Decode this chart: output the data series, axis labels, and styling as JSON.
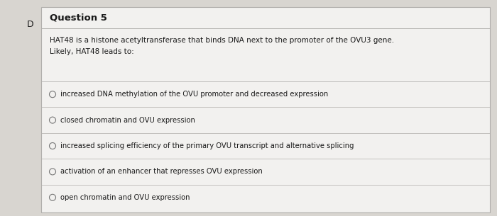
{
  "bg_color": "#d8d5d0",
  "card_color": "#f2f1ef",
  "border_color": "#b0aeab",
  "title": "Question 5",
  "title_fontsize": 9.5,
  "prefix_letter": "D",
  "question_line1": "HAT48 is a histone acetyltransferase that binds DNA next to the promoter of the OVU3 gene.",
  "question_line2": "Likely, HAT48 leads to:",
  "question_fontsize": 7.5,
  "options": [
    "increased DNA methylation of the OVU promoter and decreased expression",
    "closed chromatin and OVU expression",
    "increased splicing efficiency of the primary OVU transcript and alternative splicing",
    "activation of an enhancer that represses OVU expression",
    "open chromatin and OVU expression"
  ],
  "option_fontsize": 7.2,
  "text_color": "#1a1a1a",
  "divider_color": "#b0aeab",
  "circle_color": "#777777",
  "prefix_fontsize": 9
}
